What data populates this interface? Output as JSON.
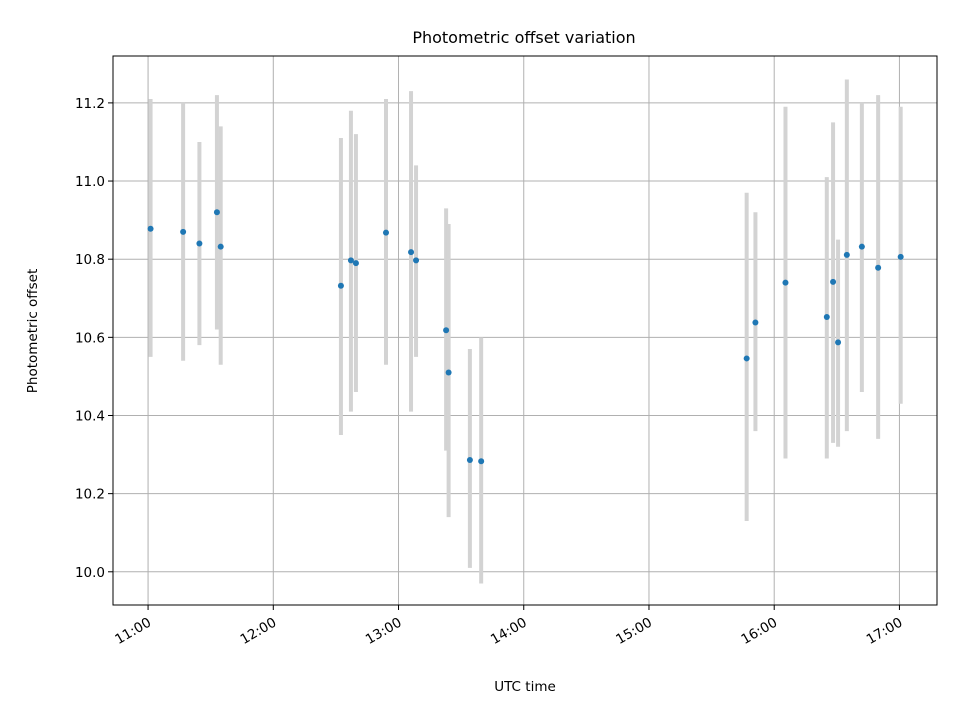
{
  "chart_data": {
    "type": "scatter",
    "title": "Photometric offset variation",
    "xlabel": "UTC time",
    "ylabel": "Photometric offset",
    "x_unit": "hours_utc",
    "xlim": [
      10.72,
      17.3
    ],
    "ylim": [
      9.915,
      11.32
    ],
    "grid": true,
    "x_ticks": [
      {
        "value": 11,
        "label": "11:00"
      },
      {
        "value": 12,
        "label": "12:00"
      },
      {
        "value": 13,
        "label": "13:00"
      },
      {
        "value": 14,
        "label": "14:00"
      },
      {
        "value": 15,
        "label": "15:00"
      },
      {
        "value": 16,
        "label": "16:00"
      },
      {
        "value": 17,
        "label": "17:00"
      }
    ],
    "y_ticks": [
      {
        "value": 10.0,
        "label": "10.0"
      },
      {
        "value": 10.2,
        "label": "10.2"
      },
      {
        "value": 10.4,
        "label": "10.4"
      },
      {
        "value": 10.6,
        "label": "10.6"
      },
      {
        "value": 10.8,
        "label": "10.8"
      },
      {
        "value": 11.0,
        "label": "11.0"
      },
      {
        "value": 11.2,
        "label": "11.2"
      }
    ],
    "colors": {
      "point": "#1f77b4",
      "errorbar": "#d3d3d3",
      "grid": "#b0b0b0"
    },
    "points": [
      {
        "x": 11.02,
        "y": 10.878,
        "ylow": 10.55,
        "yhigh": 11.21
      },
      {
        "x": 11.28,
        "y": 10.87,
        "ylow": 10.54,
        "yhigh": 11.2
      },
      {
        "x": 11.41,
        "y": 10.84,
        "ylow": 10.58,
        "yhigh": 11.1
      },
      {
        "x": 11.55,
        "y": 10.92,
        "ylow": 10.62,
        "yhigh": 11.22
      },
      {
        "x": 11.58,
        "y": 10.832,
        "ylow": 10.53,
        "yhigh": 11.14
      },
      {
        "x": 12.54,
        "y": 10.732,
        "ylow": 10.35,
        "yhigh": 11.11
      },
      {
        "x": 12.62,
        "y": 10.797,
        "ylow": 10.41,
        "yhigh": 11.18
      },
      {
        "x": 12.66,
        "y": 10.79,
        "ylow": 10.46,
        "yhigh": 11.12
      },
      {
        "x": 12.9,
        "y": 10.868,
        "ylow": 10.53,
        "yhigh": 11.21
      },
      {
        "x": 13.1,
        "y": 10.818,
        "ylow": 10.41,
        "yhigh": 11.23
      },
      {
        "x": 13.14,
        "y": 10.797,
        "ylow": 10.55,
        "yhigh": 11.04
      },
      {
        "x": 13.38,
        "y": 10.618,
        "ylow": 10.31,
        "yhigh": 10.93
      },
      {
        "x": 13.4,
        "y": 10.51,
        "ylow": 10.14,
        "yhigh": 10.89
      },
      {
        "x": 13.57,
        "y": 10.286,
        "ylow": 10.01,
        "yhigh": 10.57
      },
      {
        "x": 13.66,
        "y": 10.283,
        "ylow": 9.97,
        "yhigh": 10.6
      },
      {
        "x": 15.78,
        "y": 10.546,
        "ylow": 10.13,
        "yhigh": 10.97
      },
      {
        "x": 15.85,
        "y": 10.638,
        "ylow": 10.36,
        "yhigh": 10.92
      },
      {
        "x": 16.09,
        "y": 10.74,
        "ylow": 10.29,
        "yhigh": 11.19
      },
      {
        "x": 16.42,
        "y": 10.652,
        "ylow": 10.29,
        "yhigh": 11.01
      },
      {
        "x": 16.47,
        "y": 10.742,
        "ylow": 10.33,
        "yhigh": 11.15
      },
      {
        "x": 16.51,
        "y": 10.587,
        "ylow": 10.32,
        "yhigh": 10.85
      },
      {
        "x": 16.58,
        "y": 10.811,
        "ylow": 10.36,
        "yhigh": 11.26
      },
      {
        "x": 16.7,
        "y": 10.832,
        "ylow": 10.46,
        "yhigh": 11.2
      },
      {
        "x": 16.83,
        "y": 10.778,
        "ylow": 10.34,
        "yhigh": 11.22
      },
      {
        "x": 17.01,
        "y": 10.806,
        "ylow": 10.43,
        "yhigh": 11.19
      }
    ]
  }
}
